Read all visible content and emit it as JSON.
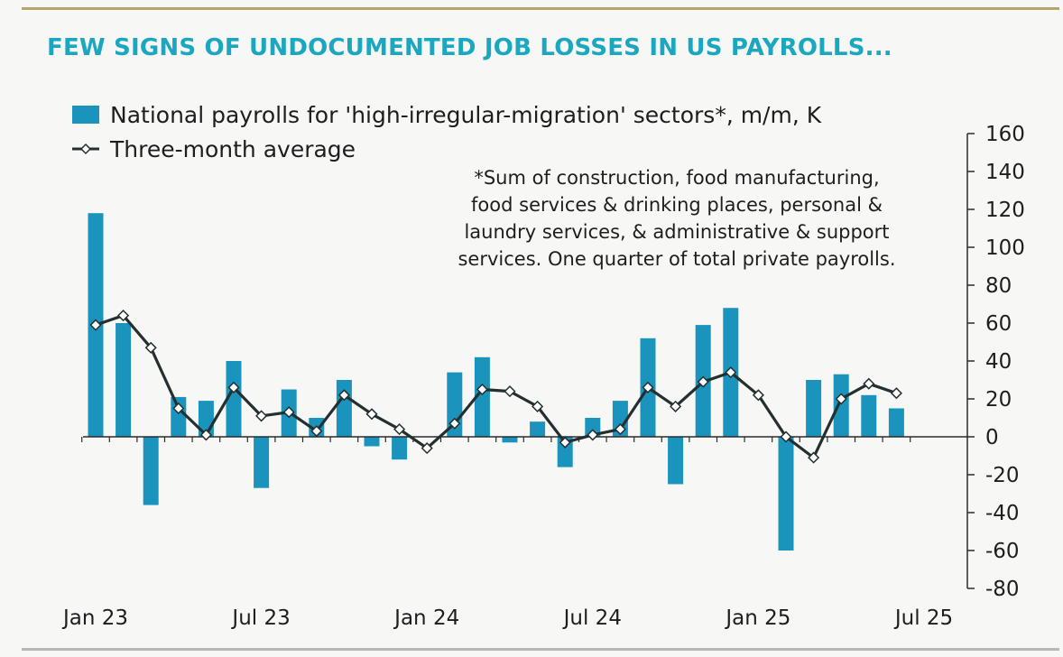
{
  "title": "FEW SIGNS OF UNDOCUMENTED JOB LOSSES IN US PAYROLLS...",
  "footnote": "*Sum of construction, food manufacturing,\nfood services & drinking places, personal &\nlaundry services, & administrative & support\nservices. One quarter of total private payrolls.",
  "colors": {
    "bar": "#1a93bd",
    "line": "#23302f",
    "title": "#1ba7bf"
  },
  "chart_data": {
    "type": "bar",
    "title": "FEW SIGNS OF UNDOCUMENTED JOB LOSSES IN US PAYROLLS...",
    "categories": [
      "Jan 23",
      "Feb 23",
      "Mar 23",
      "Apr 23",
      "May 23",
      "Jun 23",
      "Jul 23",
      "Aug 23",
      "Sep 23",
      "Oct 23",
      "Nov 23",
      "Dec 23",
      "Jan 24",
      "Feb 24",
      "Mar 24",
      "Apr 24",
      "May 24",
      "Jun 24",
      "Jul 24",
      "Aug 24",
      "Sep 24",
      "Oct 24",
      "Nov 24",
      "Dec 24",
      "Jan 25",
      "Feb 25",
      "Mar 25",
      "Apr 25",
      "May 25",
      "Jun 25"
    ],
    "x_tick_labels": [
      "Jan 23",
      "Jul 23",
      "Jan 24",
      "Jul 24",
      "Jan 25",
      "Jul 25"
    ],
    "y_tick_labels": [
      "160",
      "140",
      "120",
      "100",
      "80",
      "60",
      "40",
      "20",
      "0",
      "-20",
      "-40",
      "-60",
      "-80"
    ],
    "ylim": [
      -80,
      160
    ],
    "y_axis_side": "right",
    "legend_position": "top-left",
    "series": [
      {
        "name": "National payrolls for 'high-irregular-migration' sectors*, m/m, K",
        "type": "bar",
        "values": [
          118,
          60,
          -36,
          21,
          19,
          40,
          -27,
          25,
          10,
          30,
          -5,
          -12,
          0,
          34,
          42,
          -3,
          8,
          -16,
          10,
          19,
          52,
          -25,
          59,
          68,
          0,
          -60,
          30,
          33,
          22,
          15
        ]
      },
      {
        "name": "Three-month average",
        "type": "line",
        "values": [
          59,
          64,
          47,
          15,
          1,
          26,
          11,
          13,
          3,
          22,
          12,
          4,
          -6,
          7,
          25,
          24,
          16,
          -3,
          1,
          4,
          26,
          16,
          29,
          34,
          22,
          0,
          -11,
          20,
          28,
          23
        ]
      }
    ]
  }
}
